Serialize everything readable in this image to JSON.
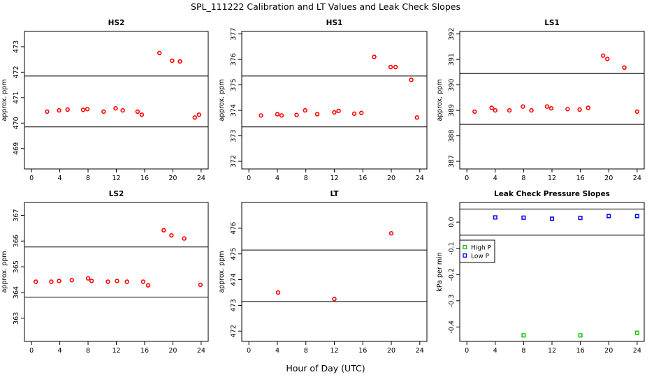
{
  "title": "SPL_111222  Calibration and LT Values and Leak Check Slopes",
  "xlabel": "Hour of Day (UTC)",
  "chart_data": [
    {
      "type": "scatter",
      "title": "HS2",
      "ylabel": "approx. ppm",
      "xlim": [
        -1,
        25
      ],
      "ylim": [
        468.2,
        473.6
      ],
      "xticks": [
        0,
        4,
        8,
        12,
        16,
        20,
        24
      ],
      "yticks": [
        469,
        470,
        471,
        472,
        473
      ],
      "hlines": [
        469.85,
        471.85
      ],
      "marker": "circle",
      "series": [
        {
          "color": "#ff0000",
          "points": [
            [
              2.2,
              470.45
            ],
            [
              3.9,
              470.5
            ],
            [
              5.1,
              470.53
            ],
            [
              7.3,
              470.52
            ],
            [
              7.9,
              470.55
            ],
            [
              10.2,
              470.45
            ],
            [
              11.9,
              470.58
            ],
            [
              12.9,
              470.5
            ],
            [
              15.0,
              470.45
            ],
            [
              15.6,
              470.33
            ],
            [
              18.1,
              472.75
            ],
            [
              19.9,
              472.45
            ],
            [
              21.0,
              472.42
            ],
            [
              23.1,
              470.22
            ],
            [
              23.7,
              470.33
            ]
          ]
        }
      ]
    },
    {
      "type": "scatter",
      "title": "HS1",
      "ylabel": "approx. ppm",
      "xlim": [
        -1,
        25
      ],
      "ylim": [
        371.7,
        377.1
      ],
      "xticks": [
        0,
        4,
        8,
        12,
        16,
        20,
        24
      ],
      "yticks": [
        372,
        373,
        374,
        375,
        376,
        377
      ],
      "hlines": [
        373.35,
        375.35
      ],
      "marker": "circle",
      "series": [
        {
          "color": "#ff0000",
          "points": [
            [
              1.7,
              373.8
            ],
            [
              4.0,
              373.85
            ],
            [
              4.6,
              373.8
            ],
            [
              6.7,
              373.82
            ],
            [
              7.9,
              374.0
            ],
            [
              9.6,
              373.85
            ],
            [
              12.0,
              373.92
            ],
            [
              12.6,
              373.98
            ],
            [
              14.8,
              373.87
            ],
            [
              15.8,
              373.9
            ],
            [
              17.6,
              376.1
            ],
            [
              19.9,
              375.7
            ],
            [
              20.6,
              375.7
            ],
            [
              22.8,
              375.2
            ],
            [
              23.6,
              373.72
            ]
          ]
        }
      ]
    },
    {
      "type": "scatter",
      "title": "LS1",
      "ylabel": "approx. ppm",
      "xlim": [
        -1,
        25
      ],
      "ylim": [
        386.7,
        392.1
      ],
      "xticks": [
        0,
        4,
        8,
        12,
        16,
        20,
        24
      ],
      "yticks": [
        387,
        388,
        389,
        390,
        391,
        392
      ],
      "hlines": [
        388.45,
        390.45
      ],
      "marker": "circle",
      "series": [
        {
          "color": "#ff0000",
          "points": [
            [
              1.1,
              388.95
            ],
            [
              3.5,
              389.1
            ],
            [
              4.0,
              389.0
            ],
            [
              6.0,
              389.0
            ],
            [
              7.9,
              389.15
            ],
            [
              9.1,
              389.0
            ],
            [
              11.3,
              389.15
            ],
            [
              11.9,
              389.08
            ],
            [
              14.2,
              389.05
            ],
            [
              15.9,
              389.03
            ],
            [
              17.1,
              389.1
            ],
            [
              19.2,
              391.15
            ],
            [
              19.8,
              391.02
            ],
            [
              22.2,
              390.68
            ],
            [
              24.0,
              388.95
            ]
          ]
        }
      ]
    },
    {
      "type": "scatter",
      "title": "LS2",
      "ylabel": "approx. ppm",
      "xlim": [
        -1,
        25
      ],
      "ylim": [
        362.1,
        367.5
      ],
      "xticks": [
        0,
        4,
        8,
        12,
        16,
        20,
        24
      ],
      "yticks": [
        363,
        364,
        365,
        366,
        367
      ],
      "hlines": [
        363.82,
        365.77
      ],
      "marker": "circle",
      "series": [
        {
          "color": "#ff0000",
          "points": [
            [
              0.6,
              364.42
            ],
            [
              2.8,
              364.42
            ],
            [
              3.9,
              364.45
            ],
            [
              5.7,
              364.48
            ],
            [
              8.0,
              364.55
            ],
            [
              8.5,
              364.45
            ],
            [
              10.8,
              364.42
            ],
            [
              12.1,
              364.45
            ],
            [
              13.5,
              364.42
            ],
            [
              15.8,
              364.42
            ],
            [
              16.5,
              364.28
            ],
            [
              18.7,
              366.42
            ],
            [
              19.8,
              366.22
            ],
            [
              21.6,
              366.1
            ],
            [
              23.9,
              364.3
            ]
          ]
        }
      ]
    },
    {
      "type": "scatter",
      "title": "LT",
      "ylabel": "approx. ppm",
      "xlim": [
        -1,
        25
      ],
      "ylim": [
        471.6,
        477.0
      ],
      "xticks": [
        0,
        4,
        8,
        12,
        16,
        20,
        24
      ],
      "yticks": [
        472,
        473,
        474,
        475,
        476
      ],
      "hlines": [
        473.15,
        475.15
      ],
      "marker": "circle",
      "series": [
        {
          "color": "#ff0000",
          "points": [
            [
              4.1,
              473.5
            ],
            [
              12.0,
              473.25
            ],
            [
              20.0,
              475.8
            ]
          ]
        }
      ]
    },
    {
      "type": "scatter",
      "title": "Leak Check Pressure Slopes",
      "ylabel": "kPa per min",
      "xlim": [
        -1,
        25
      ],
      "ylim": [
        -0.455,
        0.075
      ],
      "xticks": [
        0,
        4,
        8,
        12,
        16,
        20,
        24
      ],
      "yticks": [
        -0.4,
        -0.3,
        -0.2,
        -0.1,
        0.0
      ],
      "ytick_labels": [
        "-0.4",
        "-0.3",
        "-0.2",
        "-0.1",
        "0.0"
      ],
      "hlines": [
        -0.05,
        0.05
      ],
      "marker": "square",
      "legend": "left",
      "series": [
        {
          "name": "High P",
          "color": "#00cc00",
          "points": [
            [
              8.0,
              -0.432
            ],
            [
              16.0,
              -0.432
            ],
            [
              24.0,
              -0.422
            ]
          ]
        },
        {
          "name": "Low P",
          "color": "#0000ee",
          "points": [
            [
              4.0,
              0.018
            ],
            [
              8.0,
              0.017
            ],
            [
              12.0,
              0.013
            ],
            [
              16.0,
              0.016
            ],
            [
              20.0,
              0.023
            ],
            [
              24.0,
              0.023
            ]
          ]
        }
      ]
    }
  ]
}
